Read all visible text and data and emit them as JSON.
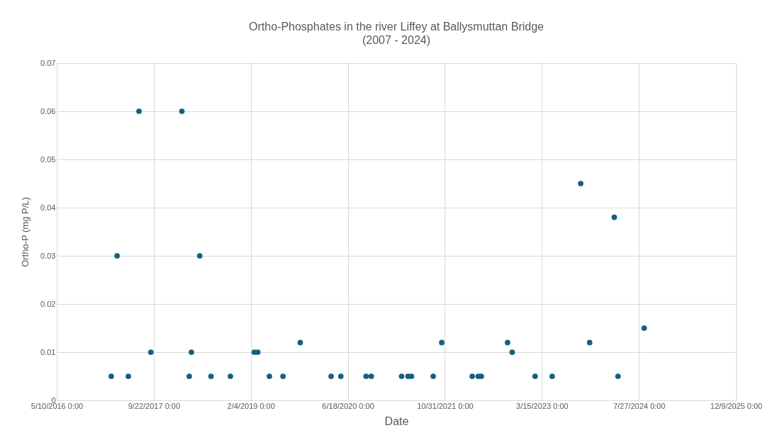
{
  "chart_data": {
    "type": "scatter",
    "title": "Ortho-Phosphates in the river Liffey at Ballysmuttan Bridge",
    "subtitle": "(2007 - 2024)",
    "xlabel": "Date",
    "ylabel": "Ortho-P (mg P/L)",
    "x": [
      "2017-02-15",
      "2017-03-17",
      "2017-05-14",
      "2017-07-08",
      "2017-09-07",
      "2018-02-14",
      "2018-03-24",
      "2018-04-04",
      "2018-05-17",
      "2018-07-14",
      "2018-10-22",
      "2019-02-22",
      "2019-03-12",
      "2019-05-11",
      "2019-07-20",
      "2019-10-17",
      "2020-03-24",
      "2020-05-13",
      "2020-09-20",
      "2020-10-17",
      "2021-03-22",
      "2021-04-24",
      "2021-05-12",
      "2021-09-01",
      "2021-10-15",
      "2022-03-21",
      "2022-04-21",
      "2022-05-07",
      "2022-09-19",
      "2022-10-13",
      "2023-02-08",
      "2023-05-07",
      "2023-10-01",
      "2023-11-16",
      "2024-03-22",
      "2024-04-10",
      "2024-08-23"
    ],
    "series": [
      {
        "color": "#155f82",
        "values": [
          0.005,
          0.03,
          0.005,
          0.06,
          0.01,
          0.06,
          0.005,
          0.01,
          0.03,
          0.005,
          0.005,
          0.01,
          0.01,
          0.005,
          0.005,
          0.012,
          0.005,
          0.005,
          0.005,
          0.005,
          0.005,
          0.005,
          0.005,
          0.005,
          0.012,
          0.005,
          0.005,
          0.005,
          0.012,
          0.01,
          0.005,
          0.005,
          0.045,
          0.012,
          0.038,
          0.005,
          0.015
        ]
      }
    ],
    "xlim": [
      "2016-05-10",
      "2025-12-09"
    ],
    "xticks": [
      {
        "value": "2016-05-10",
        "label": "5/10/2016 0:00"
      },
      {
        "value": "2017-09-22",
        "label": "9/22/2017 0:00"
      },
      {
        "value": "2019-02-04",
        "label": "2/4/2019 0:00"
      },
      {
        "value": "2020-06-18",
        "label": "6/18/2020 0:00"
      },
      {
        "value": "2021-10-31",
        "label": "10/31/2021 0:00"
      },
      {
        "value": "2023-03-15",
        "label": "3/15/2023 0:00"
      },
      {
        "value": "2024-07-27",
        "label": "7/27/2024 0:00"
      },
      {
        "value": "2025-12-09",
        "label": "12/9/2025 0:00"
      }
    ],
    "ylim": [
      0,
      0.07
    ],
    "yticks": [
      0,
      0.01,
      0.02,
      0.03,
      0.04,
      0.05,
      0.06,
      0.07
    ],
    "grid": true,
    "marker": "circle"
  }
}
